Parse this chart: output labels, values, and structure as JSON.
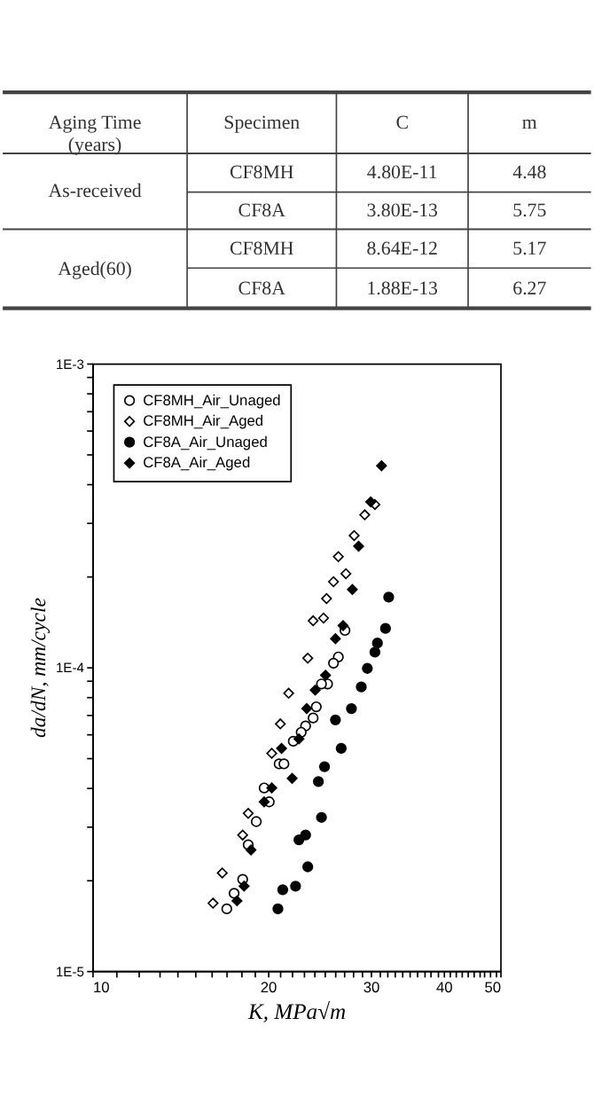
{
  "chart_data": {
    "type": "scatter",
    "annotations": [
      "Aging Time\n(years)",
      "Specimen",
      "C",
      "m",
      "As-received",
      "CF8MH",
      "4.80E-11",
      "4.48",
      "CF8A",
      "3.80E-13",
      "5.75",
      "Aged(60)",
      "CF8MH",
      "8.64E-12",
      "5.17",
      "CF8A",
      "1.88E-13",
      "6.27"
    ],
    "xlabel": "K, MPa√m",
    "ylabel": "da/dN, mm/cycle",
    "series": [
      {
        "name": "CF8MH_Air_Unaged",
        "color": "#ffffff",
        "marker": "circle",
        "x": [
          27.1,
          26.4,
          25.9,
          25.3,
          24.7,
          24.2,
          23.9,
          23.2,
          22.8,
          22.1,
          20.9,
          21.3,
          19.7,
          20.1,
          19.1,
          18.5,
          18.1,
          17.5,
          17.0
        ],
        "values": [
          0.000132,
          0.000108,
          0.000103,
          8.8e-05,
          8.8e-05,
          7.4e-05,
          6.8e-05,
          6.4e-05,
          6.1e-05,
          5.7e-05,
          4.8e-05,
          4.8e-05,
          4e-05,
          3.6e-05,
          3.1e-05,
          2.6e-05,
          2e-05,
          1.8e-05,
          1.6e-05
        ]
      },
      {
        "name": "CF8MH_Air_Aged",
        "color": "#ffffff",
        "marker": "diamond",
        "x": [
          30.5,
          29.3,
          28.1,
          26.4,
          27.2,
          25.9,
          25.2,
          23.9,
          24.9,
          23.4,
          21.7,
          21.0,
          20.3,
          18.5,
          18.1,
          16.7,
          16.1
        ],
        "values": [
          0.000343,
          0.000317,
          0.000271,
          0.000231,
          0.000203,
          0.000191,
          0.000168,
          0.000142,
          0.000145,
          0.000107,
          8.2e-05,
          6.5e-05,
          5.2e-05,
          3.3e-05,
          2.8e-05,
          2.1e-05,
          1.67e-05
        ]
      },
      {
        "name": "CF8A_Air_Unaged",
        "color": "#000000",
        "marker": "circle",
        "x": [
          32.2,
          31.8,
          30.8,
          30.5,
          29.6,
          28.9,
          27.8,
          26.1,
          26.7,
          25.0,
          24.4,
          24.7,
          23.2,
          22.6,
          23.4,
          22.3,
          21.2,
          20.8
        ],
        "values": [
          0.00017,
          0.000134,
          0.00012,
          0.000112,
          9.9e-05,
          8.6e-05,
          7.3e-05,
          6.7e-05,
          5.4e-05,
          4.7e-05,
          4.2e-05,
          3.2e-05,
          2.8e-05,
          2.7e-05,
          2.2e-05,
          1.9e-05,
          1.85e-05,
          1.6e-05
        ]
      },
      {
        "name": "CF8A_Air_Aged",
        "color": "#000000",
        "marker": "diamond",
        "x": [
          31.3,
          30.0,
          28.6,
          27.9,
          26.9,
          26.1,
          25.1,
          24.1,
          23.3,
          22.6,
          21.1,
          22.0,
          20.3,
          19.7,
          18.7,
          18.2,
          17.7
        ],
        "values": [
          0.00046,
          0.00035,
          0.00025,
          0.00018,
          0.000137,
          0.000124,
          9.4e-05,
          8.4e-05,
          7.3e-05,
          5.8e-05,
          5.4e-05,
          4.3e-05,
          4e-05,
          3.6e-05,
          2.5e-05,
          1.9e-05,
          1.7e-05
        ]
      }
    ],
    "log": "xy",
    "xlim": [
      10,
      50
    ],
    "ylim": [
      1e-05,
      0.001
    ],
    "xticks": [
      10,
      {
        "value": 11,
        "label": null
      },
      {
        "value": 12,
        "label": null
      },
      {
        "value": 13,
        "label": null
      },
      {
        "value": 14,
        "label": null
      },
      {
        "value": 15,
        "label": null
      },
      {
        "value": 16,
        "label": null
      },
      {
        "value": 17,
        "label": null
      },
      {
        "value": 18,
        "label": null
      },
      {
        "value": 19,
        "label": null
      },
      20,
      {
        "value": 21,
        "label": null
      },
      {
        "value": 22,
        "label": null
      },
      {
        "value": 23,
        "label": null
      },
      {
        "value": 24,
        "label": null
      },
      {
        "value": 25,
        "label": null
      },
      {
        "value": 26,
        "label": null
      },
      {
        "value": 27,
        "label": null
      },
      {
        "value": 28,
        "label": null
      },
      {
        "value": 29,
        "label": null
      },
      30,
      {
        "value": 31,
        "label": null
      },
      {
        "value": 32,
        "label": null
      },
      {
        "value": 33,
        "label": null
      },
      {
        "value": 34,
        "label": null
      },
      {
        "value": 35,
        "label": null
      },
      {
        "value": 36,
        "label": null
      },
      {
        "value": 37,
        "label": null
      },
      {
        "value": 38,
        "label": null
      },
      {
        "value": 39,
        "label": null
      },
      40,
      {
        "value": 41,
        "label": null
      },
      {
        "value": 42,
        "label": null
      },
      {
        "value": 43,
        "label": null
      },
      {
        "value": 44,
        "label": null
      },
      {
        "value": 45,
        "label": null
      },
      {
        "value": 46,
        "label": null
      },
      {
        "value": 47,
        "label": null
      },
      {
        "value": 48,
        "label": null
      },
      {
        "value": 49,
        "label": null
      },
      50
    ],
    "yticks": [
      {
        "value": 1e-05,
        "label": "1E-5"
      },
      {
        "value": 2e-05,
        "label": null
      },
      {
        "value": 3e-05,
        "label": null
      },
      {
        "value": 4e-05,
        "label": null
      },
      {
        "value": 5e-05,
        "label": null
      },
      {
        "value": 6e-05,
        "label": null
      },
      {
        "value": 7e-05,
        "label": null
      },
      {
        "value": 8e-05,
        "label": null
      },
      {
        "value": 9e-05,
        "label": null
      },
      {
        "value": 0.0001,
        "label": "1E-4"
      },
      {
        "value": 0.0002,
        "label": null
      },
      {
        "value": 0.0003,
        "label": null
      },
      {
        "value": 0.0004,
        "label": null
      },
      {
        "value": 0.0005,
        "label": null
      },
      {
        "value": 0.0006,
        "label": null
      },
      {
        "value": 0.0007,
        "label": null
      },
      {
        "value": 0.0008,
        "label": null
      },
      {
        "value": 0.0009,
        "label": null
      },
      {
        "value": 0.001,
        "label": "1E-3"
      }
    ],
    "grid": false,
    "legend": "top left"
  }
}
